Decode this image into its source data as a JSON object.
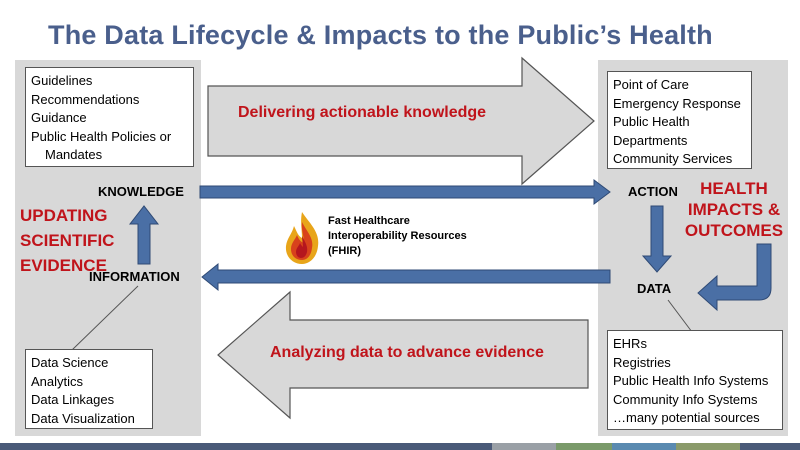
{
  "title": "The Data Lifecycle & Impacts to the Public’s Health",
  "left_top_box": {
    "items": [
      "Guidelines",
      "Recommendations",
      "Guidance",
      "Public Health Policies or",
      "Mandates"
    ]
  },
  "left_bottom_box": {
    "items": [
      "Data Science",
      "Analytics",
      "Data Linkages",
      "Data Visualization"
    ]
  },
  "right_top_box": {
    "items": [
      "Point of Care",
      "Emergency Response",
      "Public Health",
      "Departments",
      "Community Services"
    ]
  },
  "right_bottom_box": {
    "items": [
      "EHRs",
      "Registries",
      "Public Health Info Systems",
      "Community Info Systems",
      "…many potential sources"
    ]
  },
  "nodes": {
    "knowledge": "KNOWLEDGE",
    "information": "INFORMATION",
    "action": "ACTION",
    "data": "DATA"
  },
  "labels": {
    "updating_evidence": [
      "UPDATING",
      "SCIENTIFIC",
      "EVIDENCE"
    ],
    "health_impacts": [
      "HEALTH",
      "IMPACTS &",
      "OUTCOMES"
    ],
    "top_arrow": "Delivering actionable knowledge",
    "bottom_arrow": "Analyzing data to advance evidence"
  },
  "fhir": {
    "lines": [
      "Fast Healthcare",
      "Interoperability Resources",
      "(FHIR)"
    ],
    "icon": "fire-icon"
  },
  "colors": {
    "title": "#4a5f8c",
    "accent_red": "#c0141b",
    "arrow_fill": "#d8d8d8",
    "thin_arrow_fill": "#4a6fa5",
    "panel": "#d8d8d8"
  },
  "footer_bar_colors": [
    "#4a5a78",
    "#9aa0a6",
    "#7a9a6a",
    "#5a8ab0",
    "#8a9a6a",
    "#4a5a78"
  ]
}
